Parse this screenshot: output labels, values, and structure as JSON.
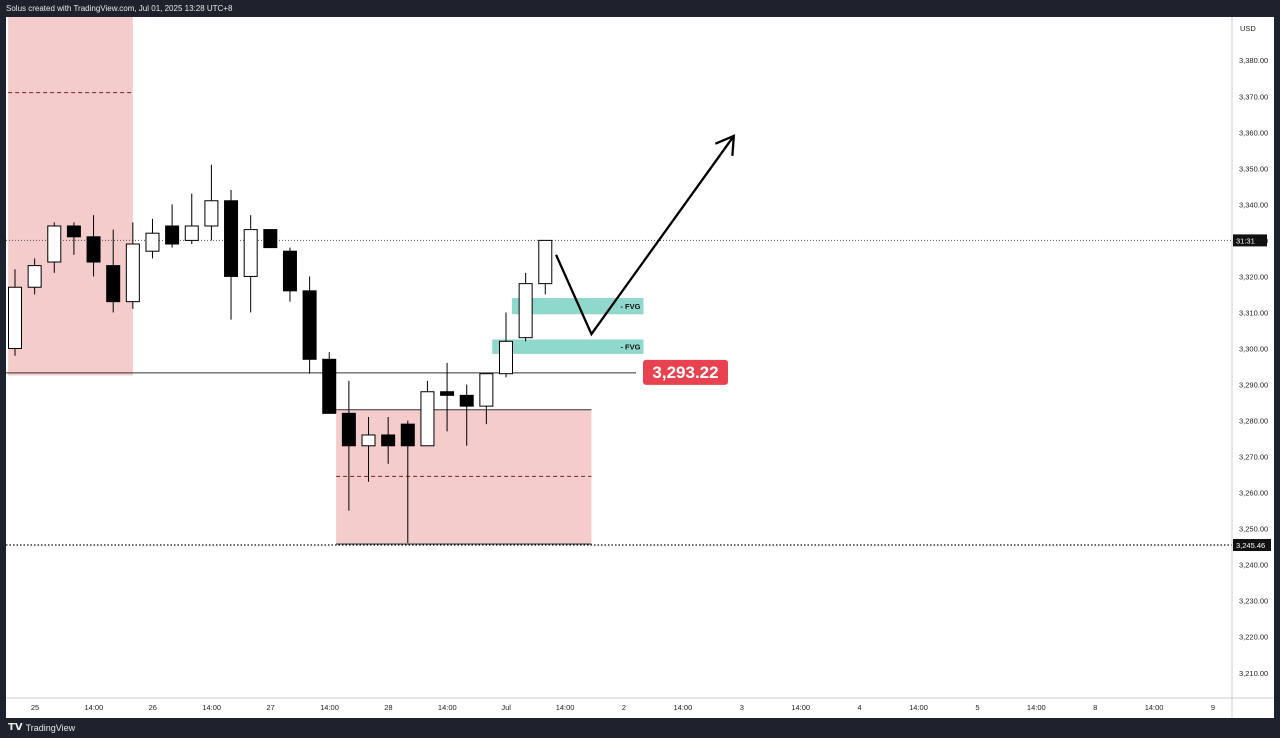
{
  "header": {
    "caption": "Solus created with TradingView.com, Jul 01, 2025 13:28 UTC+8"
  },
  "footer": {
    "brand": "TradingView"
  },
  "chart_data": {
    "type": "candlestick",
    "currency": "USD",
    "ylim": [
      3203,
      3392
    ],
    "y_ticks": [
      "3,380.00",
      "3,370.00",
      "3,360.00",
      "3,350.00",
      "3,340.00",
      "3,330.00",
      "3,320.00",
      "3,310.00",
      "3,300.00",
      "3,290.00",
      "3,280.00",
      "3,270.00",
      "3,260.00",
      "3,250.00",
      "3,240.00",
      "3,230.00",
      "3,220.00",
      "3,210.00"
    ],
    "y_tick_values": [
      3380,
      3370,
      3360,
      3350,
      3340,
      3330,
      3320,
      3310,
      3300,
      3290,
      3280,
      3270,
      3260,
      3250,
      3240,
      3230,
      3220,
      3210
    ],
    "x_ticks": [
      "25",
      "14:00",
      "26",
      "14:00",
      "27",
      "14:00",
      "28",
      "14:00",
      "Jul",
      "14:00",
      "2",
      "14:00",
      "3",
      "14:00",
      "4",
      "14:00",
      "5",
      "14:00",
      "8",
      "14:00",
      "9"
    ],
    "candles": [
      {
        "o": 3300,
        "h": 3322,
        "l": 3298,
        "c": 3317
      },
      {
        "o": 3317,
        "h": 3325,
        "l": 3315,
        "c": 3323
      },
      {
        "o": 3324,
        "h": 3335,
        "l": 3321,
        "c": 3334
      },
      {
        "o": 3334,
        "h": 3335,
        "l": 3326,
        "c": 3331
      },
      {
        "o": 3331,
        "h": 3337,
        "l": 3320,
        "c": 3324
      },
      {
        "o": 3323,
        "h": 3333,
        "l": 3310,
        "c": 3313
      },
      {
        "o": 3313,
        "h": 3335,
        "l": 3311,
        "c": 3329
      },
      {
        "o": 3327,
        "h": 3336,
        "l": 3325,
        "c": 3332
      },
      {
        "o": 3334,
        "h": 3340,
        "l": 3328,
        "c": 3329
      },
      {
        "o": 3330,
        "h": 3343,
        "l": 3329,
        "c": 3334
      },
      {
        "o": 3334,
        "h": 3351,
        "l": 3330,
        "c": 3341
      },
      {
        "o": 3341,
        "h": 3344,
        "l": 3308,
        "c": 3320
      },
      {
        "o": 3320,
        "h": 3337,
        "l": 3310,
        "c": 3333
      },
      {
        "o": 3333,
        "h": 3333,
        "l": 3328,
        "c": 3328
      },
      {
        "o": 3327,
        "h": 3328,
        "l": 3313,
        "c": 3316
      },
      {
        "o": 3316,
        "h": 3320,
        "l": 3293,
        "c": 3297
      },
      {
        "o": 3297,
        "h": 3299,
        "l": 3282,
        "c": 3282
      },
      {
        "o": 3282,
        "h": 3291,
        "l": 3255,
        "c": 3273
      },
      {
        "o": 3273,
        "h": 3281,
        "l": 3263,
        "c": 3276
      },
      {
        "o": 3276,
        "h": 3281,
        "l": 3268,
        "c": 3273
      },
      {
        "o": 3279,
        "h": 3280,
        "l": 3246,
        "c": 3273
      },
      {
        "o": 3273,
        "h": 3291,
        "l": 3273,
        "c": 3288
      },
      {
        "o": 3288,
        "h": 3296,
        "l": 3277,
        "c": 3287
      },
      {
        "o": 3287,
        "h": 3290,
        "l": 3273,
        "c": 3284
      },
      {
        "o": 3284,
        "h": 3293,
        "l": 3279,
        "c": 3293
      },
      {
        "o": 3293,
        "h": 3310,
        "l": 3292,
        "c": 3302
      },
      {
        "o": 3303,
        "h": 3321,
        "l": 3302,
        "c": 3318
      },
      {
        "o": 3318,
        "h": 3330,
        "l": 3315,
        "c": 3330
      }
    ],
    "zones": [
      {
        "x0": -0.35,
        "x1": 6.0,
        "top": 3392,
        "bottom": 3292.5,
        "mid": 3371,
        "color": "#f4cccc"
      },
      {
        "x0": 16.35,
        "x1": 29.35,
        "top": 3283,
        "bottom": 3246,
        "mid": 3264.5,
        "color": "#f4cccc"
      }
    ],
    "fvgs": [
      {
        "label": "FVG",
        "x0": 25.3,
        "x1": 32.0,
        "top": 3314,
        "bottom": 3309.5
      },
      {
        "label": "FVG",
        "x0": 24.3,
        "x1": 32.0,
        "top": 3302.5,
        "bottom": 3298.5
      }
    ],
    "levels": {
      "support_label": "3,293.22",
      "support_value": 3293.22,
      "low_label": "3,245.46",
      "low_value": 3245.46,
      "current_label": "31:31",
      "current_value": 3330
    },
    "projection": [
      {
        "x": 27.55,
        "y": 3326
      },
      {
        "x": 29.35,
        "y": 3304
      },
      {
        "x": 36.6,
        "y": 3359
      }
    ]
  }
}
